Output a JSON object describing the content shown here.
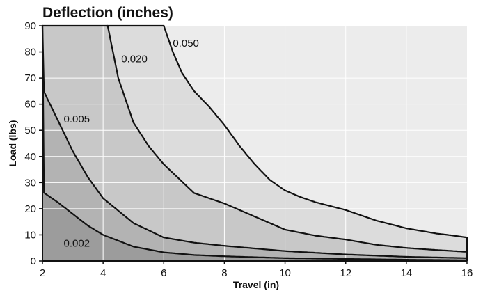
{
  "chart_data": {
    "type": "area",
    "title": "Deflection (inches)",
    "xlabel": "Travel (in)",
    "ylabel": "Load (lbs)",
    "xlim": [
      2,
      16
    ],
    "ylim": [
      0,
      90
    ],
    "x_ticks": [
      2,
      4,
      6,
      8,
      10,
      12,
      14,
      16
    ],
    "y_ticks": [
      0,
      10,
      20,
      30,
      40,
      50,
      60,
      70,
      80,
      90
    ],
    "grid": true,
    "fill_colors": [
      "#9c9c9c",
      "#b3b3b3",
      "#c8c8c8",
      "#dcdcdc",
      "#ececec"
    ],
    "series": [
      {
        "name": "0.002",
        "x": [
          2,
          2.5,
          3,
          3.5,
          4,
          5,
          6,
          7,
          8,
          10,
          12,
          14,
          16
        ],
        "y": [
          26.5,
          22.5,
          18,
          13.5,
          10,
          5.5,
          3.3,
          2.3,
          1.8,
          1.1,
          0.8,
          0.5,
          0.3
        ]
      },
      {
        "name": "0.005",
        "x": [
          2,
          2.5,
          3,
          3.5,
          4,
          5,
          6,
          7,
          8,
          10,
          12,
          14,
          16
        ],
        "y": [
          66,
          54,
          42,
          32,
          24,
          14.5,
          9,
          7,
          5.8,
          3.8,
          2.5,
          1.6,
          1.1
        ]
      },
      {
        "name": "0.020",
        "x": [
          4.15,
          4.5,
          5,
          5.5,
          6,
          7,
          8,
          9,
          10,
          11,
          12,
          13,
          14,
          15,
          16
        ],
        "y": [
          90,
          70,
          53,
          44,
          37,
          26,
          22,
          17,
          12,
          9.7,
          8.2,
          6.2,
          5,
          4.2,
          3.5
        ]
      },
      {
        "name": "0.050",
        "x": [
          6,
          6.3,
          6.6,
          7,
          7.5,
          8,
          8.5,
          9,
          9.5,
          10,
          10.5,
          11,
          11.5,
          12,
          12.5,
          13,
          13.5,
          14,
          14.5,
          15,
          15.5,
          16
        ],
        "y": [
          90,
          80,
          72,
          65,
          59,
          52,
          44,
          37,
          31,
          27,
          24.5,
          22.5,
          21,
          19.5,
          17.5,
          15.5,
          14,
          12.5,
          11.5,
          10.5,
          9.8,
          9
        ]
      }
    ]
  }
}
